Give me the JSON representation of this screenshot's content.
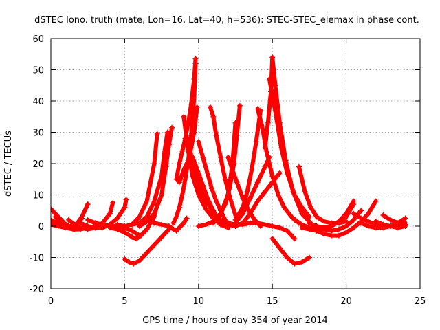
{
  "chart_data": {
    "type": "scatter",
    "title": "dSTEC Iono. truth (mate, Lon=16, Lat=40, h=536): STEC-STEC_elemax in phase cont.",
    "xlabel": "GPS time / hours of day 354 of year 2014",
    "ylabel": "dSTEC  / TECUs",
    "xlim": [
      0,
      25
    ],
    "ylim": [
      -20,
      60
    ],
    "xticks": [
      0,
      5,
      10,
      15,
      20,
      25
    ],
    "yticks": [
      -20,
      -10,
      0,
      10,
      20,
      30,
      40,
      50,
      60
    ],
    "x_tick_labels": [
      "0",
      "5",
      "10",
      "15",
      "20",
      "25"
    ],
    "y_tick_labels": [
      "-20",
      "-10",
      "0",
      "10",
      "20",
      "30",
      "40",
      "50",
      "60"
    ],
    "grid": true,
    "marker": "+",
    "color": "#ff0000",
    "series": [
      {
        "x": [
          0.0,
          0.3,
          0.6,
          0.9,
          1.2,
          1.5,
          1.8,
          2.1,
          2.5
        ],
        "y": [
          5.5,
          4,
          2.5,
          1,
          0,
          -0.5,
          1,
          3,
          7
        ]
      },
      {
        "x": [
          0.0,
          0.4,
          0.8,
          1.2,
          1.6,
          2.0
        ],
        "y": [
          2,
          1,
          0,
          -0.5,
          -1,
          -0.5
        ]
      },
      {
        "x": [
          0.0,
          0.5,
          1.0,
          1.5,
          2.0,
          2.5,
          3.0
        ],
        "y": [
          0.5,
          0,
          -0.5,
          -1,
          -1,
          -0.5,
          0
        ]
      },
      {
        "x": [
          0.3,
          0.6,
          0.9,
          1.2,
          1.5,
          1.8,
          2.1
        ],
        "y": [
          3,
          1.5,
          0.5,
          0,
          0,
          1,
          2.5
        ]
      },
      {
        "x": [
          1.2,
          1.6,
          2.0,
          2.5,
          3.0,
          3.5,
          4.0,
          4.2
        ],
        "y": [
          2,
          0.5,
          -0.5,
          -1,
          -0.5,
          1,
          4,
          7.5
        ]
      },
      {
        "x": [
          2.0,
          2.5,
          3.0,
          3.5,
          4.0,
          4.5,
          5.0,
          5.1
        ],
        "y": [
          1,
          0,
          -0.5,
          -0.5,
          0.5,
          2.5,
          6,
          8.5
        ]
      },
      {
        "x": [
          2.5,
          3.0,
          3.5,
          4.0,
          4.5,
          5.0,
          5.5,
          6.0
        ],
        "y": [
          2,
          1,
          0.5,
          0,
          0,
          -0.5,
          -1.5,
          -3
        ]
      },
      {
        "x": [
          4.0,
          4.5,
          5.0,
          5.5,
          5.8,
          6.1,
          6.5,
          7.0,
          7.2
        ],
        "y": [
          -0.5,
          -1,
          -2,
          -3.5,
          -4,
          -3,
          -1,
          3,
          7
        ]
      },
      {
        "x": [
          4.5,
          5.0,
          5.5,
          6.0,
          6.5,
          7.0,
          7.2
        ],
        "y": [
          0.5,
          0,
          0.5,
          3,
          8,
          20,
          29.5
        ]
      },
      {
        "x": [
          5.5,
          6.0,
          6.5,
          7.0,
          7.5,
          7.7,
          7.9
        ],
        "y": [
          0.5,
          1,
          3,
          8,
          16,
          24,
          30
        ]
      },
      {
        "x": [
          6.0,
          6.5,
          7.0,
          7.5,
          7.8,
          8.0,
          8.2
        ],
        "y": [
          0,
          1.5,
          4,
          10,
          19,
          26,
          31.5
        ]
      },
      {
        "x": [
          5.0,
          5.3,
          5.6,
          6.0,
          6.5,
          7.0,
          7.5,
          8.0
        ],
        "y": [
          -10.5,
          -11.5,
          -12,
          -11,
          -8.5,
          -6,
          -3.5,
          -1
        ]
      },
      {
        "x": [
          7.0,
          7.5,
          8.0,
          8.3,
          8.5,
          8.7,
          9.0,
          9.2
        ],
        "y": [
          1,
          0.5,
          0,
          -1,
          -1.5,
          -0.5,
          1,
          2.5
        ]
      },
      {
        "x": [
          8.5,
          8.7,
          8.9,
          9.1,
          9.3,
          9.5,
          9.7,
          9.8
        ],
        "y": [
          15,
          20,
          24,
          28,
          33,
          39,
          47,
          53.5
        ]
      },
      {
        "x": [
          8.3,
          8.5,
          8.7,
          8.9,
          9.1,
          9.3,
          9.5,
          9.7,
          9.8
        ],
        "y": [
          1,
          3,
          6,
          10,
          15,
          21,
          29,
          41,
          52
        ]
      },
      {
        "x": [
          8.7,
          9.0,
          9.3,
          9.5,
          9.7,
          9.9
        ],
        "y": [
          14,
          18,
          21,
          25,
          30,
          38
        ]
      },
      {
        "x": [
          9.0,
          9.3,
          9.6,
          10.0,
          10.5,
          11.0,
          11.5,
          12.0
        ],
        "y": [
          35,
          24,
          16,
          10,
          5.5,
          2.5,
          0.5,
          -0.5
        ]
      },
      {
        "x": [
          9.3,
          9.6,
          10.0,
          10.5,
          11.0,
          11.5,
          12.0,
          12.5
        ],
        "y": [
          28,
          20,
          13,
          8,
          4.5,
          2,
          0.5,
          0
        ]
      },
      {
        "x": [
          9.6,
          10.0,
          10.3,
          10.6,
          11.0,
          11.5
        ],
        "y": [
          22,
          17,
          13,
          9,
          5,
          1
        ]
      },
      {
        "x": [
          10.0,
          10.3,
          10.6,
          10.9,
          11.2,
          11.5,
          11.8
        ],
        "y": [
          27,
          22,
          17,
          12,
          8,
          5,
          2
        ]
      },
      {
        "x": [
          10.8,
          11.0,
          11.2,
          11.5,
          11.8,
          12.2,
          12.6
        ],
        "y": [
          38,
          35,
          29,
          22,
          15,
          8,
          2
        ]
      },
      {
        "x": [
          10.0,
          10.5,
          11.0,
          11.5,
          12.0,
          12.3,
          12.5
        ],
        "y": [
          0,
          0.5,
          1.5,
          4,
          10,
          20,
          33
        ]
      },
      {
        "x": [
          11.0,
          11.4,
          11.8,
          12.1,
          12.4,
          12.6,
          12.8
        ],
        "y": [
          1,
          3,
          7,
          12,
          20,
          29,
          38.5
        ]
      },
      {
        "x": [
          12.0,
          12.3,
          12.6,
          13.0,
          13.4,
          13.8,
          14.2
        ],
        "y": [
          22,
          18,
          14,
          9,
          5,
          2,
          0
        ]
      },
      {
        "x": [
          12.5,
          13.0,
          13.3,
          13.6,
          13.9,
          14.2
        ],
        "y": [
          2,
          6,
          11,
          18,
          27,
          37
        ]
      },
      {
        "x": [
          11.5,
          12.0,
          12.5,
          13.0,
          13.5,
          14.0,
          14.5,
          15.0,
          15.5
        ],
        "y": [
          2,
          1,
          0,
          1,
          4,
          8,
          11,
          14,
          17
        ]
      },
      {
        "x": [
          12.5,
          13.0,
          13.5,
          14.0,
          14.5,
          14.8
        ],
        "y": [
          1,
          4,
          9,
          14,
          19,
          22
        ]
      },
      {
        "x": [
          12.0,
          12.5,
          13.0,
          13.5,
          14.0,
          14.5,
          15.0,
          15.5,
          16.0,
          16.5
        ],
        "y": [
          1,
          0.5,
          0.5,
          1,
          1,
          0.5,
          0,
          -0.5,
          -1.5,
          -4
        ]
      },
      {
        "x": [
          14.0,
          14.3,
          14.6,
          15.0,
          15.4,
          15.8,
          16.3,
          16.8
        ],
        "y": [
          37.5,
          32,
          24,
          16,
          10,
          6,
          3,
          1
        ]
      },
      {
        "x": [
          14.5,
          14.7,
          14.9,
          15.0,
          15.2,
          15.5,
          15.9,
          16.4,
          17.0,
          17.6
        ],
        "y": [
          25,
          33,
          43,
          54,
          45,
          33,
          21,
          11,
          4,
          1
        ]
      },
      {
        "x": [
          14.8,
          15.0,
          15.3,
          15.6,
          16.0,
          16.5,
          17.0,
          17.5
        ],
        "y": [
          47,
          42,
          34,
          25,
          17,
          10,
          6,
          3
        ]
      },
      {
        "x": [
          15.0,
          15.5,
          16.0,
          16.5,
          17.0,
          17.5
        ],
        "y": [
          -4,
          -7,
          -10,
          -12,
          -11.5,
          -10
        ]
      },
      {
        "x": [
          16.8,
          17.2,
          17.6,
          18.0,
          18.5,
          19.0,
          19.5,
          20.0
        ],
        "y": [
          19,
          11,
          6,
          3,
          1.5,
          1,
          1,
          1.5
        ]
      },
      {
        "x": [
          16.5,
          17.0,
          17.5,
          18.0,
          18.5,
          19.0,
          19.5,
          20.0,
          20.5
        ],
        "y": [
          2,
          0.5,
          -0.5,
          -1,
          -1,
          0,
          1.5,
          3,
          7
        ]
      },
      {
        "x": [
          17.0,
          17.5,
          18.0,
          18.5,
          19.0,
          19.5,
          20.0,
          20.5,
          21.0,
          21.5,
          22.0
        ],
        "y": [
          -0.5,
          -1,
          -1.5,
          -2.5,
          -3,
          -3,
          -2,
          -0.5,
          1.5,
          4,
          8
        ]
      },
      {
        "x": [
          17.5,
          18.0,
          18.5,
          19.0,
          19.5,
          20.0,
          20.5
        ],
        "y": [
          1,
          0,
          -0.5,
          0,
          1.5,
          4,
          8
        ]
      },
      {
        "x": [
          18.0,
          18.5,
          19.0,
          19.5,
          20.0,
          20.5,
          21.0
        ],
        "y": [
          0,
          -1,
          -1.5,
          -1,
          0,
          2,
          5
        ]
      },
      {
        "x": [
          20.5,
          21.0,
          21.5,
          22.0,
          22.5,
          23.0,
          23.5,
          24.0
        ],
        "y": [
          4,
          2.5,
          1.5,
          0.5,
          0,
          0,
          -0.5,
          0
        ]
      },
      {
        "x": [
          21.0,
          21.5,
          22.0,
          22.5,
          23.0,
          23.5,
          24.0
        ],
        "y": [
          1,
          0,
          -0.5,
          -0.5,
          0,
          1,
          2.5
        ]
      },
      {
        "x": [
          22.0,
          22.5,
          23.0,
          23.5,
          24.0
        ],
        "y": [
          1.5,
          0.5,
          0,
          0.5,
          1
        ]
      },
      {
        "x": [
          22.5,
          23.0,
          23.5,
          24.0
        ],
        "y": [
          3.5,
          2,
          1,
          0.5
        ]
      }
    ]
  }
}
